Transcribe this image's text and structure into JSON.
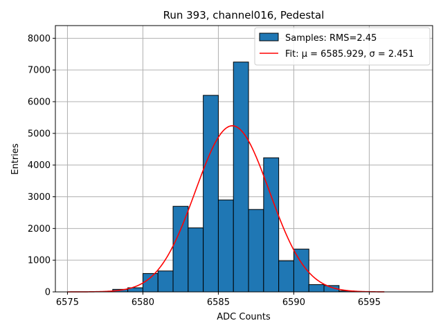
{
  "chart_data": {
    "type": "bar",
    "title": "Run 393, channel016, Pedestal",
    "xlabel": "ADC Counts",
    "ylabel": "Entries",
    "xlim": [
      6574.2,
      6599.2
    ],
    "ylim": [
      0,
      8400
    ],
    "xticks": [
      6575,
      6580,
      6585,
      6590,
      6595
    ],
    "yticks": [
      0,
      1000,
      2000,
      3000,
      4000,
      5000,
      6000,
      7000,
      8000
    ],
    "grid": true,
    "legend_position": "top-right",
    "bin_width": 1,
    "bins": [
      {
        "x": 6578,
        "count": 80
      },
      {
        "x": 6579,
        "count": 130
      },
      {
        "x": 6580,
        "count": 580
      },
      {
        "x": 6581,
        "count": 660
      },
      {
        "x": 6582,
        "count": 2700
      },
      {
        "x": 6583,
        "count": 2020
      },
      {
        "x": 6584,
        "count": 6200
      },
      {
        "x": 6585,
        "count": 2900
      },
      {
        "x": 6586,
        "count": 7250
      },
      {
        "x": 6587,
        "count": 2600
      },
      {
        "x": 6588,
        "count": 4230
      },
      {
        "x": 6589,
        "count": 980
      },
      {
        "x": 6590,
        "count": 1350
      },
      {
        "x": 6591,
        "count": 230
      },
      {
        "x": 6592,
        "count": 200
      },
      {
        "x": 6593,
        "count": 30
      },
      {
        "x": 6594,
        "count": 10
      }
    ],
    "series": [
      {
        "name": "Samples: RMS=2.45",
        "kind": "histogram",
        "color": "#1f77b4"
      },
      {
        "name": "Fit: μ = 6585.929, σ = 2.451",
        "kind": "line",
        "color": "#ff0000",
        "mu": 6585.929,
        "sigma": 2.451,
        "amplitude": 5240,
        "x_range": [
          6575,
          6596
        ]
      }
    ]
  }
}
